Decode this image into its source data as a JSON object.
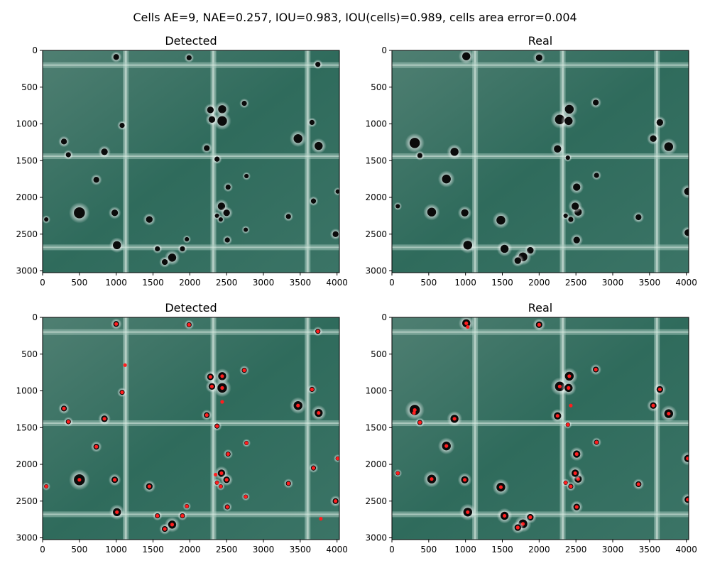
{
  "title": "Cells AE=9, NAE=0.257, IOU=0.983, IOU(cells)=0.989, cells area error=0.004",
  "chart_data": [
    {
      "type": "image-scatter",
      "title": "Detected",
      "xlim": [
        0,
        4032
      ],
      "ylim": [
        3024,
        0
      ],
      "xticks": [
        "0",
        "500",
        "1000",
        "1500",
        "2000",
        "2500",
        "3000",
        "3500",
        "4000"
      ],
      "yticks": [
        "0",
        "500",
        "1000",
        "1500",
        "2000",
        "2500",
        "3000"
      ],
      "show_markers": false,
      "cells": [
        [
          1000,
          90,
          40
        ],
        [
          1990,
          100,
          35
        ],
        [
          3740,
          190,
          35
        ],
        [
          2280,
          810,
          45
        ],
        [
          2440,
          800,
          55
        ],
        [
          2440,
          960,
          65
        ],
        [
          2300,
          940,
          45
        ],
        [
          2740,
          720,
          35
        ],
        [
          1080,
          1020,
          35
        ],
        [
          3660,
          980,
          35
        ],
        [
          290,
          1240,
          40
        ],
        [
          3470,
          1200,
          60
        ],
        [
          3750,
          1300,
          55
        ],
        [
          840,
          1380,
          45
        ],
        [
          350,
          1420,
          35
        ],
        [
          2230,
          1330,
          40
        ],
        [
          2370,
          1480,
          35
        ],
        [
          730,
          1760,
          40
        ],
        [
          2770,
          1710,
          30
        ],
        [
          2520,
          1860,
          35
        ],
        [
          50,
          2300,
          30
        ],
        [
          980,
          2210,
          45
        ],
        [
          500,
          2210,
          75
        ],
        [
          2430,
          2120,
          50
        ],
        [
          2500,
          2210,
          45
        ],
        [
          2370,
          2250,
          30
        ],
        [
          2420,
          2300,
          30
        ],
        [
          1450,
          2300,
          45
        ],
        [
          3340,
          2260,
          35
        ],
        [
          3680,
          2050,
          35
        ],
        [
          4010,
          1920,
          30
        ],
        [
          2510,
          2580,
          35
        ],
        [
          2760,
          2440,
          30
        ],
        [
          3980,
          2500,
          40
        ],
        [
          1010,
          2650,
          55
        ],
        [
          1560,
          2700,
          35
        ],
        [
          1900,
          2700,
          35
        ],
        [
          1960,
          2570,
          30
        ],
        [
          1760,
          2820,
          55
        ],
        [
          1660,
          2880,
          40
        ]
      ]
    },
    {
      "type": "image-scatter",
      "title": "Real",
      "xlim": [
        0,
        4032
      ],
      "ylim": [
        3024,
        0
      ],
      "xticks": [
        "0",
        "500",
        "1000",
        "1500",
        "2000",
        "2500",
        "3000",
        "3500",
        "4000"
      ],
      "yticks": [
        "0",
        "500",
        "1000",
        "1500",
        "2000",
        "2500",
        "3000"
      ],
      "show_markers": false,
      "cells": [
        [
          1010,
          80,
          55
        ],
        [
          2000,
          100,
          45
        ],
        [
          2410,
          800,
          60
        ],
        [
          2280,
          940,
          65
        ],
        [
          2400,
          960,
          55
        ],
        [
          2770,
          710,
          40
        ],
        [
          3640,
          980,
          45
        ],
        [
          310,
          1260,
          70
        ],
        [
          3550,
          1200,
          45
        ],
        [
          3760,
          1310,
          60
        ],
        [
          850,
          1380,
          55
        ],
        [
          380,
          1430,
          35
        ],
        [
          2250,
          1340,
          50
        ],
        [
          2390,
          1460,
          30
        ],
        [
          740,
          1750,
          60
        ],
        [
          2780,
          1700,
          35
        ],
        [
          2510,
          1860,
          50
        ],
        [
          2530,
          2200,
          50
        ],
        [
          2490,
          2120,
          50
        ],
        [
          2360,
          2250,
          30
        ],
        [
          2430,
          2300,
          35
        ],
        [
          80,
          2120,
          30
        ],
        [
          540,
          2200,
          60
        ],
        [
          990,
          2210,
          50
        ],
        [
          1480,
          2310,
          60
        ],
        [
          3350,
          2270,
          40
        ],
        [
          4020,
          1920,
          50
        ],
        [
          4020,
          2480,
          45
        ],
        [
          2510,
          2580,
          45
        ],
        [
          1030,
          2650,
          60
        ],
        [
          1530,
          2700,
          55
        ],
        [
          1880,
          2720,
          45
        ],
        [
          1780,
          2810,
          60
        ],
        [
          1710,
          2860,
          45
        ]
      ]
    },
    {
      "type": "image-scatter",
      "title": "Detected",
      "xlim": [
        0,
        4032
      ],
      "ylim": [
        3024,
        0
      ],
      "xticks": [
        "0",
        "500",
        "1000",
        "1500",
        "2000",
        "2500",
        "3000",
        "3500",
        "4000"
      ],
      "yticks": [
        "0",
        "500",
        "1000",
        "1500",
        "2000",
        "2500",
        "3000"
      ],
      "show_markers": true,
      "cells": [
        [
          1000,
          90,
          40
        ],
        [
          1990,
          100,
          35
        ],
        [
          3740,
          190,
          35
        ],
        [
          2280,
          810,
          45
        ],
        [
          2440,
          800,
          55
        ],
        [
          2440,
          960,
          65
        ],
        [
          2300,
          940,
          45
        ],
        [
          2740,
          720,
          35
        ],
        [
          1080,
          1020,
          35
        ],
        [
          3660,
          980,
          35
        ],
        [
          290,
          1240,
          40
        ],
        [
          3470,
          1200,
          60
        ],
        [
          3750,
          1300,
          55
        ],
        [
          840,
          1380,
          45
        ],
        [
          350,
          1420,
          35
        ],
        [
          2230,
          1330,
          40
        ],
        [
          2370,
          1480,
          35
        ],
        [
          730,
          1760,
          40
        ],
        [
          2770,
          1710,
          30
        ],
        [
          2520,
          1860,
          35
        ],
        [
          50,
          2300,
          30
        ],
        [
          980,
          2210,
          45
        ],
        [
          500,
          2210,
          75
        ],
        [
          2430,
          2120,
          50
        ],
        [
          2500,
          2210,
          45
        ],
        [
          2370,
          2250,
          30
        ],
        [
          2420,
          2300,
          30
        ],
        [
          1450,
          2300,
          45
        ],
        [
          3340,
          2260,
          35
        ],
        [
          3680,
          2050,
          35
        ],
        [
          4010,
          1920,
          30
        ],
        [
          2510,
          2580,
          35
        ],
        [
          2760,
          2440,
          30
        ],
        [
          3980,
          2500,
          40
        ],
        [
          1010,
          2650,
          55
        ],
        [
          1560,
          2700,
          35
        ],
        [
          1900,
          2700,
          35
        ],
        [
          1960,
          2570,
          30
        ],
        [
          1760,
          2820,
          55
        ],
        [
          1660,
          2880,
          40
        ]
      ],
      "extra_markers": [
        [
          1120,
          650
        ],
        [
          2350,
          2140
        ],
        [
          3780,
          2740
        ],
        [
          2440,
          1150
        ]
      ]
    },
    {
      "type": "image-scatter",
      "title": "Real",
      "xlim": [
        0,
        4032
      ],
      "ylim": [
        3024,
        0
      ],
      "xticks": [
        "0",
        "500",
        "1000",
        "1500",
        "2000",
        "2500",
        "3000",
        "3500",
        "4000"
      ],
      "yticks": [
        "0",
        "500",
        "1000",
        "1500",
        "2000",
        "2500",
        "3000"
      ],
      "show_markers": true,
      "cells": [
        [
          1010,
          80,
          55
        ],
        [
          2000,
          100,
          45
        ],
        [
          2410,
          800,
          60
        ],
        [
          2280,
          940,
          65
        ],
        [
          2400,
          960,
          55
        ],
        [
          2770,
          710,
          40
        ],
        [
          3640,
          980,
          45
        ],
        [
          310,
          1260,
          70
        ],
        [
          3550,
          1200,
          45
        ],
        [
          3760,
          1310,
          60
        ],
        [
          850,
          1380,
          55
        ],
        [
          380,
          1430,
          35
        ],
        [
          2250,
          1340,
          50
        ],
        [
          2390,
          1460,
          30
        ],
        [
          740,
          1750,
          60
        ],
        [
          2780,
          1700,
          35
        ],
        [
          2510,
          1860,
          50
        ],
        [
          2530,
          2200,
          50
        ],
        [
          2490,
          2120,
          50
        ],
        [
          2360,
          2250,
          30
        ],
        [
          2430,
          2300,
          35
        ],
        [
          80,
          2120,
          30
        ],
        [
          540,
          2200,
          60
        ],
        [
          990,
          2210,
          50
        ],
        [
          1480,
          2310,
          60
        ],
        [
          3350,
          2270,
          40
        ],
        [
          4020,
          1920,
          50
        ],
        [
          4020,
          2480,
          45
        ],
        [
          2510,
          2580,
          45
        ],
        [
          1030,
          2650,
          60
        ],
        [
          1530,
          2700,
          55
        ],
        [
          1880,
          2720,
          45
        ],
        [
          1780,
          2810,
          60
        ],
        [
          1710,
          2860,
          45
        ]
      ],
      "extra_markers": [
        [
          1030,
          130
        ],
        [
          2430,
          1200
        ],
        [
          300,
          1300
        ]
      ]
    }
  ]
}
